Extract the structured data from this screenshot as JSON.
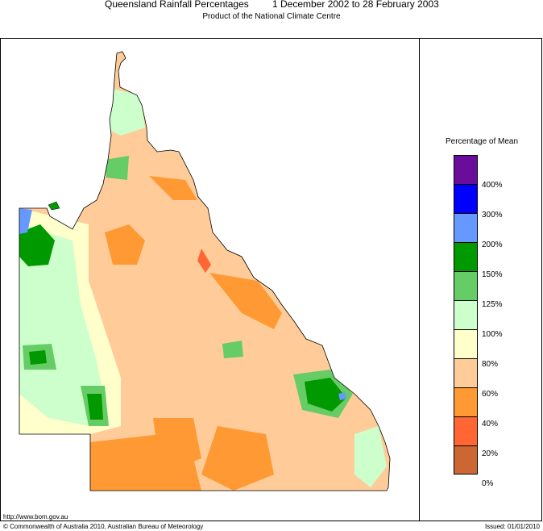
{
  "header": {
    "title": "Queensland Rainfall Percentages",
    "period": "1 December 2002 to 28 February 2003",
    "subtitle": "Product of the National Climate Centre"
  },
  "legend": {
    "title": "Percentage of Mean",
    "bins": [
      {
        "color": "#6a0d9a"
      },
      {
        "color": "#0000ff"
      },
      {
        "color": "#6699ff"
      },
      {
        "color": "#009900"
      },
      {
        "color": "#66cc66"
      },
      {
        "color": "#ccffcc"
      },
      {
        "color": "#ffffcc"
      },
      {
        "color": "#ffcc99"
      },
      {
        "color": "#ff9933"
      },
      {
        "color": "#ff6633"
      },
      {
        "color": "#cc6633"
      }
    ],
    "labels": [
      "400%",
      "300%",
      "200%",
      "150%",
      "125%",
      "100%",
      "80%",
      "60%",
      "40%",
      "20%",
      "0%"
    ]
  },
  "footer": {
    "url": "http://www.bom.gov.au",
    "copyright": "© Commonwealth of Australia 2010, Australian Bureau of Meteorology",
    "issued": "Issued: 01/01/2010"
  }
}
